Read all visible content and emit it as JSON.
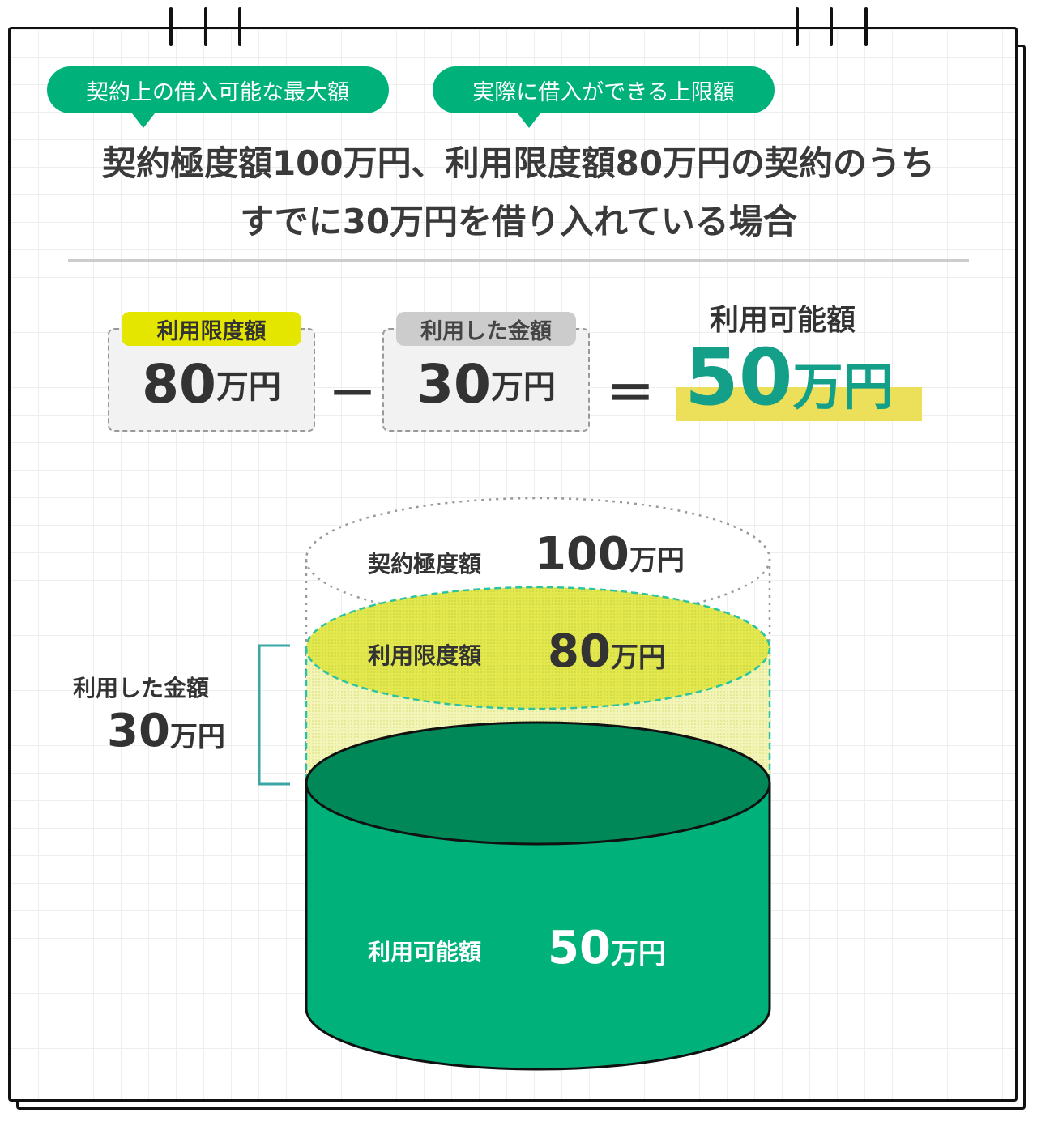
{
  "bubbles": [
    "契約上の借入可能な最大額",
    "実際に借入ができる上限額"
  ],
  "headline": {
    "line1": "契約極度額100万円、利用限度額80万円の契約のうち",
    "line2": "すでに30万円を借り入れている場合"
  },
  "formula": {
    "limit": {
      "tag": "利用限度額",
      "value": "80",
      "unit": "万円"
    },
    "minus": "－",
    "used": {
      "tag": "利用した金額",
      "value": "30",
      "unit": "万円"
    },
    "equals": "＝",
    "result": {
      "label": "利用可能額",
      "value": "50",
      "unit": "万円"
    }
  },
  "cylinder": {
    "contract": {
      "label": "契約極度額",
      "value": "100",
      "unit": "万円"
    },
    "limit": {
      "label": "利用限度額",
      "value": "80",
      "unit": "万円"
    },
    "available": {
      "label": "利用可能額",
      "value": "50",
      "unit": "万円"
    },
    "used": {
      "label": "利用した金額",
      "value": "30",
      "unit": "万円"
    }
  },
  "colors": {
    "green": "#00b27a",
    "dark_green": "#008858",
    "yellow": "#e6e84a",
    "teal": "#1a9e8a",
    "highlight": "#ece05a"
  }
}
